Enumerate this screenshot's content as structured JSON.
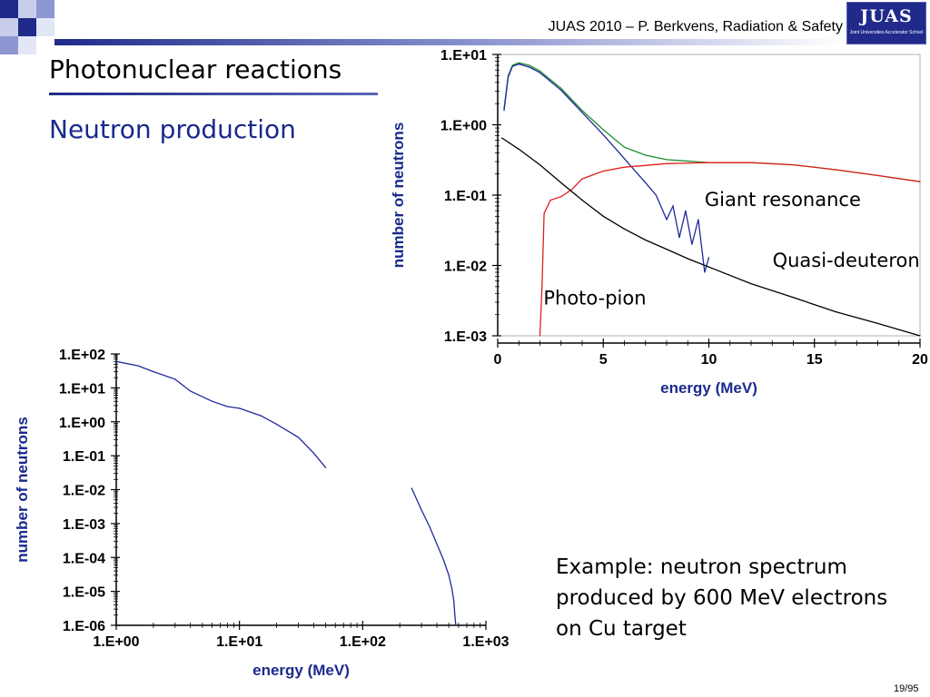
{
  "header": {
    "text": "JUAS 2010 – P. Berkvens, Radiation & Safety",
    "logo_text": "JUAS",
    "logo_subtext": "Joint Universities Accelerator School"
  },
  "slide": {
    "title": "Photonuclear reactions",
    "subtitle": "Neutron production",
    "example_text": "Example: neutron spectrum produced by 600 MeV electrons on Cu target",
    "page_number": "19/95"
  },
  "colors": {
    "navy": "#1a2a8c",
    "header_gradient_start": "#1f2a8a",
    "header_gradient_end": "#ffffff",
    "blue_curve": "#1f2a9c",
    "green_curve": "#1e8a2e",
    "red_curve": "#e0201a",
    "black_curve": "#000000"
  },
  "chart_data": [
    {
      "type": "line",
      "xlabel": "energy (MeV)",
      "ylabel": "number of neutrons",
      "xlim": [
        0,
        20
      ],
      "ylim": [
        0.001,
        10
      ],
      "y_scale": "log",
      "x_ticks": [
        0,
        5,
        10,
        15,
        20
      ],
      "x_tick_labels": [
        "0",
        "5",
        "10",
        "15",
        "20"
      ],
      "y_ticks": [
        10,
        1,
        0.1,
        0.01,
        0.001
      ],
      "y_tick_labels": [
        "1.E+01",
        "1.E+00",
        "1.E-01",
        "1.E-02",
        "1.E-03"
      ],
      "annotations": [
        {
          "text": "Giant resonance",
          "x": 13.5,
          "y": 0.07
        },
        {
          "text": "Quasi-deuteron",
          "x": 16.5,
          "y": 0.0095
        },
        {
          "text": "Photo-pion",
          "x": 4.6,
          "y": 0.0028
        }
      ],
      "series": [
        {
          "color": "green_curve",
          "x": [
            0.3,
            0.5,
            0.7,
            1.0,
            1.5,
            2.0,
            3.0,
            4.0,
            5.0,
            6.0,
            7.0,
            8.0,
            10.0,
            12.0,
            14.0,
            16.0,
            18.0,
            20.0
          ],
          "y": [
            1.7,
            5.0,
            7.0,
            7.6,
            7.0,
            5.8,
            3.3,
            1.6,
            0.85,
            0.48,
            0.37,
            0.32,
            0.29,
            0.29,
            0.27,
            0.23,
            0.19,
            0.155
          ]
        },
        {
          "color": "blue_curve",
          "x": [
            0.3,
            0.5,
            0.7,
            1.0,
            1.5,
            2.0,
            3.0,
            4.0,
            5.0,
            6.0,
            7.0,
            7.5,
            8.0,
            8.3,
            8.6,
            8.9,
            9.2,
            9.5,
            9.8,
            10.0
          ],
          "y": [
            1.6,
            4.8,
            6.8,
            7.3,
            6.6,
            5.5,
            3.1,
            1.5,
            0.72,
            0.33,
            0.15,
            0.1,
            0.045,
            0.07,
            0.025,
            0.06,
            0.02,
            0.045,
            0.008,
            0.013
          ]
        },
        {
          "color": "red_curve",
          "x": [
            2.0,
            2.1,
            2.2,
            2.5,
            3.0,
            3.5,
            4.0,
            5.0,
            6.0,
            8.0,
            10.0,
            12.0,
            14.0,
            16.0,
            18.0,
            20.0
          ],
          "y": [
            0.001,
            0.005,
            0.055,
            0.085,
            0.095,
            0.12,
            0.17,
            0.22,
            0.25,
            0.28,
            0.29,
            0.29,
            0.27,
            0.23,
            0.19,
            0.155
          ]
        },
        {
          "color": "black_curve",
          "x": [
            0.2,
            1.0,
            2.0,
            3.0,
            4.0,
            5.0,
            6.0,
            7.0,
            8.0,
            9.0,
            10.0,
            12.0,
            14.0,
            16.0,
            18.0,
            20.0
          ],
          "y": [
            0.65,
            0.45,
            0.27,
            0.15,
            0.085,
            0.05,
            0.033,
            0.023,
            0.017,
            0.0125,
            0.0095,
            0.0055,
            0.0035,
            0.0022,
            0.0015,
            0.001
          ]
        }
      ]
    },
    {
      "type": "line",
      "xlabel": "energy (MeV)",
      "ylabel": "number of neutrons",
      "xlim": [
        1,
        1000
      ],
      "ylim": [
        1e-06,
        100
      ],
      "x_scale": "log",
      "y_scale": "log",
      "x_ticks": [
        1,
        10,
        100,
        1000
      ],
      "x_tick_labels": [
        "1.E+00",
        "1.E+01",
        "1.E+02",
        "1.E+03"
      ],
      "y_ticks": [
        100,
        10,
        1,
        0.1,
        0.01,
        0.001,
        0.0001,
        1e-05,
        1e-06
      ],
      "y_tick_labels": [
        "1.E+02",
        "1.E+01",
        "1.E+00",
        "1.E-01",
        "1.E-02",
        "1.E-03",
        "1.E-04",
        "1.E-05",
        "1.E-06"
      ],
      "series": [
        {
          "color": "blue_curve",
          "x": [
            1,
            1.5,
            2,
            3,
            4,
            6,
            8,
            10,
            15,
            20,
            30,
            40,
            50
          ],
          "y": [
            60,
            45,
            30,
            18,
            8,
            4,
            2.8,
            2.5,
            1.5,
            0.85,
            0.35,
            0.12,
            0.045
          ]
        },
        {
          "color": "blue_curve",
          "x": [
            250,
            300,
            350,
            400,
            450,
            500,
            530,
            550,
            560,
            570
          ],
          "y": [
            0.011,
            0.0025,
            0.0008,
            0.00025,
            9e-05,
            3e-05,
            1.2e-05,
            5e-06,
            2e-06,
            1e-06
          ]
        }
      ]
    }
  ]
}
